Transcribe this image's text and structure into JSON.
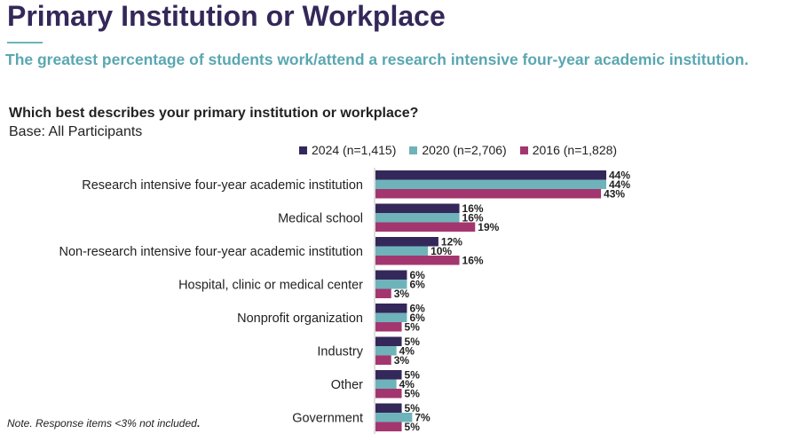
{
  "header": {
    "title": "Primary Institution or Workplace",
    "subtitle": "The greatest percentage of students work/attend a research intensive four-year academic institution."
  },
  "question": "Which best describes your primary institution or workplace?",
  "base": "Base: All Participants",
  "note": "Note. Response items <3% not included",
  "note_end": ".",
  "colors": {
    "2024": "#34285a",
    "2020": "#6fb3ba",
    "2016": "#a3366f"
  },
  "chart_data": {
    "type": "bar",
    "orientation": "horizontal",
    "categories": [
      "Research intensive four-year academic institution",
      "Medical school",
      "Non-research intensive four-year academic institution",
      "Hospital, clinic or medical center",
      "Nonprofit organization",
      "Industry",
      "Other",
      "Government"
    ],
    "series": [
      {
        "name": "2024 (n=1,415)",
        "color": "#34285a",
        "values": [
          44,
          16,
          12,
          6,
          6,
          5,
          5,
          5
        ]
      },
      {
        "name": "2020 (n=2,706)",
        "color": "#6fb3ba",
        "values": [
          44,
          16,
          10,
          6,
          6,
          4,
          4,
          7
        ]
      },
      {
        "name": "2016 (n=1,828)",
        "color": "#a3366f",
        "values": [
          43,
          19,
          16,
          3,
          5,
          3,
          5,
          5
        ]
      }
    ],
    "value_suffix": "%",
    "xlim": [
      0,
      44
    ],
    "legend_position": "top",
    "grid": false
  }
}
